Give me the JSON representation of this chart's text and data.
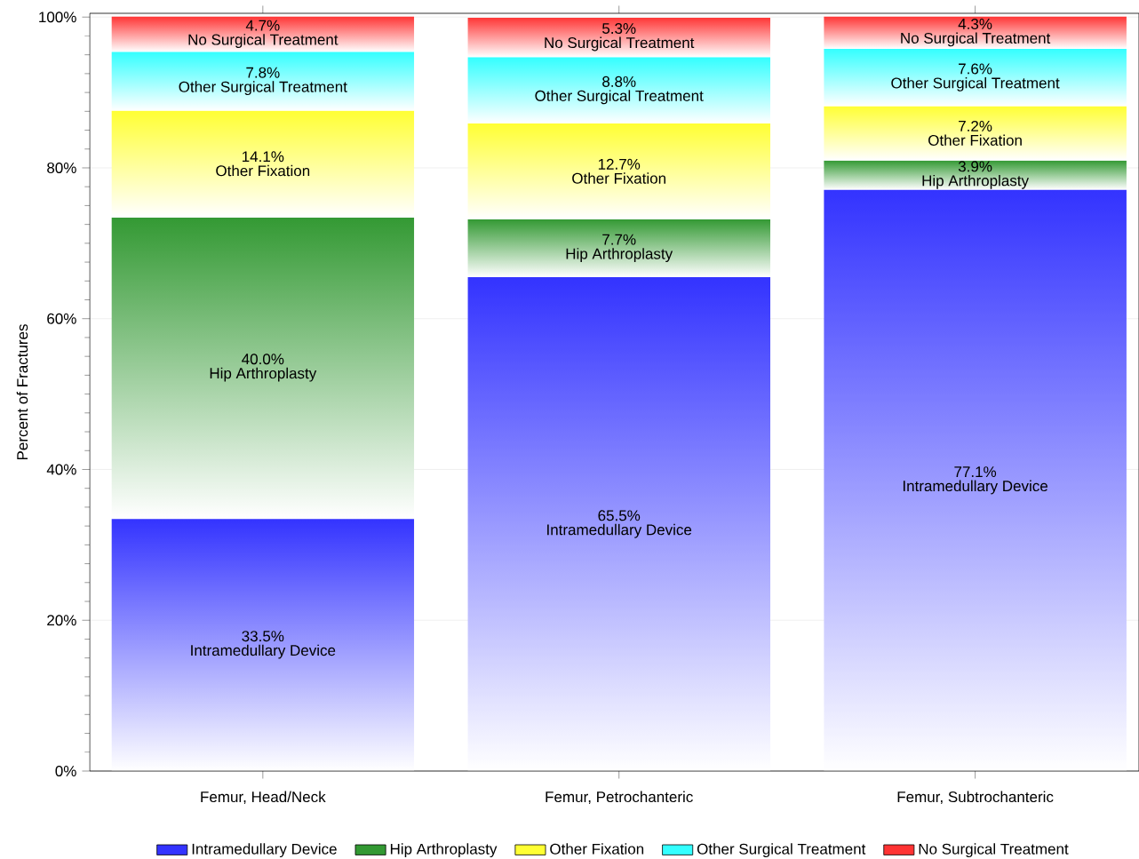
{
  "chart_data": {
    "type": "bar",
    "stacked": true,
    "ylabel": "Percent of Fractures",
    "categories": [
      "Femur, Head/Neck",
      "Femur, Petrochanteric",
      "Femur, Subtrochanteric"
    ],
    "series": [
      {
        "name": "Intramedullary Device",
        "color": "#3333ff",
        "values": [
          33.5,
          65.5,
          77.1
        ],
        "value_labels": [
          "33.5%",
          "65.5%",
          "77.1%"
        ]
      },
      {
        "name": "Hip Arthroplasty",
        "color": "#339933",
        "values": [
          40.0,
          7.7,
          3.9
        ],
        "value_labels": [
          "40.0%",
          "7.7%",
          "3.9%"
        ]
      },
      {
        "name": "Other Fixation",
        "color": "#ffff33",
        "values": [
          14.1,
          12.7,
          7.2
        ],
        "value_labels": [
          "14.1%",
          "12.7%",
          "7.2%"
        ]
      },
      {
        "name": "Other Surgical Treatment",
        "color": "#33ffff",
        "values": [
          7.8,
          8.8,
          7.6
        ],
        "value_labels": [
          "7.8%",
          "8.8%",
          "7.6%"
        ]
      },
      {
        "name": "No Surgical Treatment",
        "color": "#ff3333",
        "values": [
          4.7,
          5.3,
          4.3
        ],
        "value_labels": [
          "4.7%",
          "5.3%",
          "4.3%"
        ]
      }
    ],
    "ylim": [
      0,
      100.5
    ],
    "yticks": [
      {
        "value": 0,
        "label": "0%"
      },
      {
        "value": 20,
        "label": "20%"
      },
      {
        "value": 40,
        "label": "40%"
      },
      {
        "value": 60,
        "label": "60%"
      },
      {
        "value": 80,
        "label": "80%"
      },
      {
        "value": 100,
        "label": "100%"
      }
    ],
    "grid": "y",
    "legend": "bottom"
  }
}
